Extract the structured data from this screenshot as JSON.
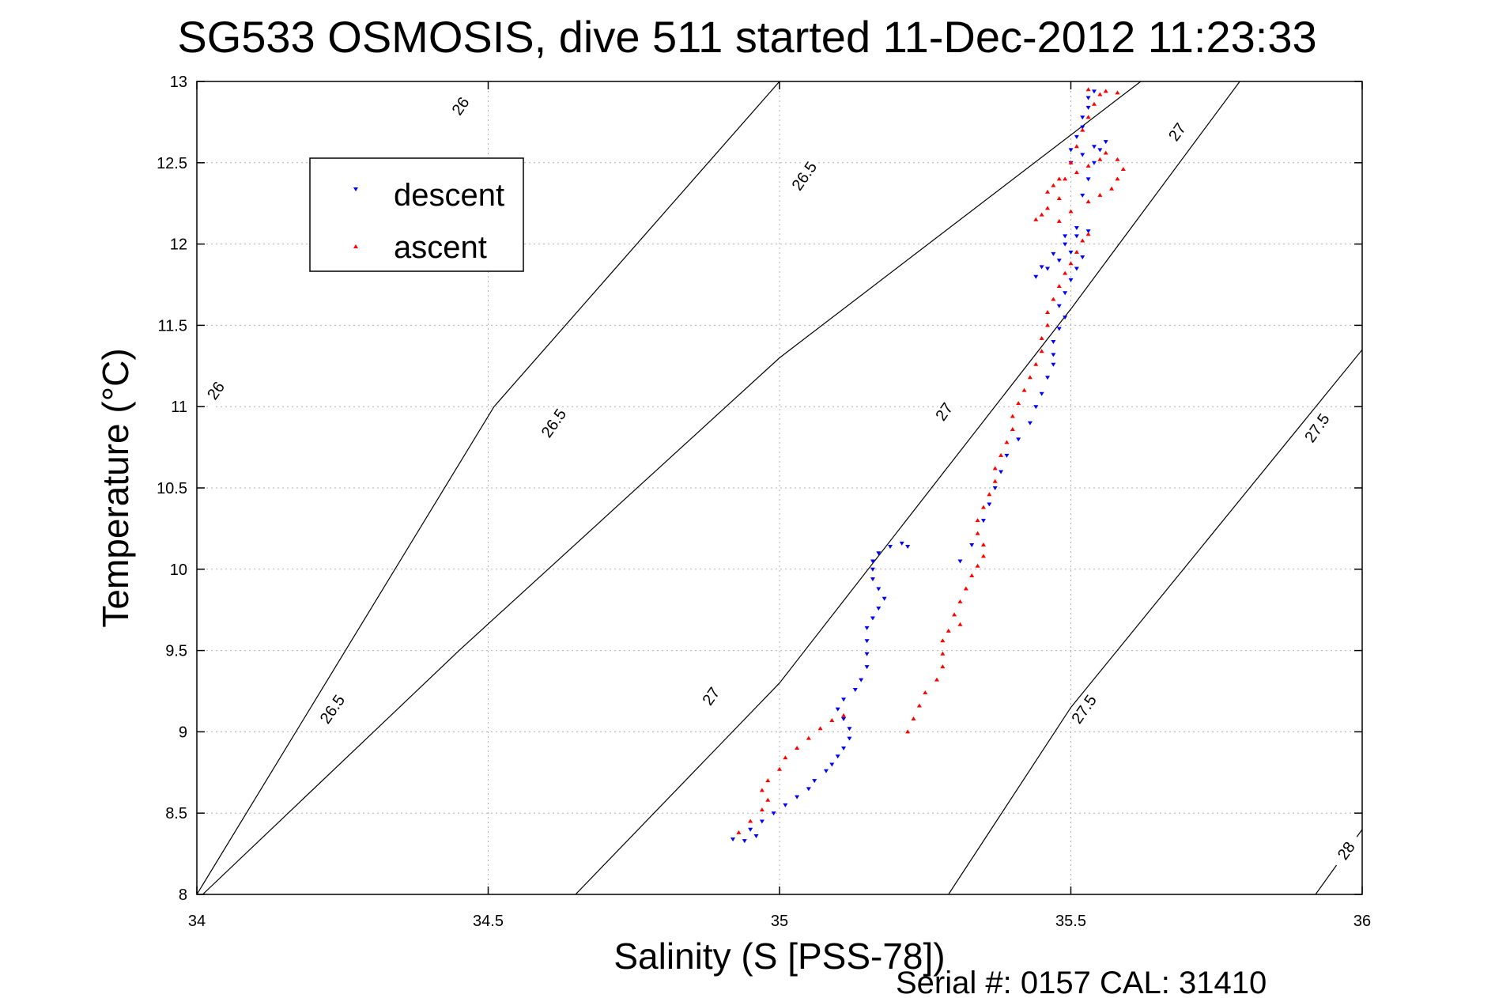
{
  "chart_data": {
    "type": "scatter",
    "title": "SG533 OSMOSIS, dive 511 started 11-Dec-2012 11:23:33",
    "xlabel": "Salinity (S [PSS-78])",
    "ylabel": "Temperature (°C)",
    "xlim": [
      34,
      36
    ],
    "ylim": [
      8,
      13
    ],
    "xticks": [
      34,
      34.5,
      35,
      35.5,
      36
    ],
    "xtick_labels": [
      "34",
      "34.5",
      "35",
      "35.5",
      "36"
    ],
    "yticks": [
      8,
      8.5,
      9,
      9.5,
      10,
      10.5,
      11,
      11.5,
      12,
      12.5,
      13
    ],
    "ytick_labels": [
      "8",
      "8.5",
      "9",
      "9.5",
      "10",
      "10.5",
      "11",
      "11.5",
      "12",
      "12.5",
      "13"
    ],
    "grid": true,
    "legend_position": "top-left",
    "footer": "Serial #: 0157  CAL: 31410",
    "density_contours": [
      {
        "label": "26",
        "points": [
          [
            34.0,
            8.0
          ],
          [
            34.51,
            11.0
          ],
          [
            35.0,
            13.0
          ]
        ]
      },
      {
        "label": "26.5",
        "points": [
          [
            34.01,
            8.0
          ],
          [
            34.45,
            9.5
          ],
          [
            35.0,
            11.3
          ],
          [
            35.62,
            13.0
          ]
        ]
      },
      {
        "label": "27",
        "points": [
          [
            34.65,
            8.0
          ],
          [
            35.0,
            9.3
          ],
          [
            35.5,
            11.6
          ],
          [
            35.79,
            13.0
          ]
        ]
      },
      {
        "label": "27.5",
        "points": [
          [
            35.29,
            8.0
          ],
          [
            35.5,
            9.15
          ],
          [
            36.0,
            11.35
          ]
        ]
      },
      {
        "label": "28",
        "points": [
          [
            35.92,
            8.0
          ],
          [
            36.0,
            8.4
          ]
        ]
      }
    ],
    "contour_label_positions": [
      {
        "label": "26",
        "at": [
          34.46,
          12.83
        ],
        "angle": -55
      },
      {
        "label": "26",
        "at": [
          34.04,
          11.08
        ],
        "angle": -55
      },
      {
        "label": "26.5",
        "at": [
          35.05,
          12.4
        ],
        "angle": -55
      },
      {
        "label": "26.5",
        "at": [
          34.62,
          10.88
        ],
        "angle": -55
      },
      {
        "label": "26.5",
        "at": [
          34.24,
          9.12
        ],
        "angle": -55
      },
      {
        "label": "27",
        "at": [
          35.69,
          12.67
        ],
        "angle": -55
      },
      {
        "label": "27",
        "at": [
          35.29,
          10.95
        ],
        "angle": -55
      },
      {
        "label": "27",
        "at": [
          34.89,
          9.2
        ],
        "angle": -55
      },
      {
        "label": "27.5",
        "at": [
          35.93,
          10.85
        ],
        "angle": -55
      },
      {
        "label": "27.5",
        "at": [
          35.53,
          9.12
        ],
        "angle": -55
      },
      {
        "label": "28",
        "at": [
          35.98,
          8.25
        ],
        "angle": -55
      }
    ],
    "series": [
      {
        "name": "descent",
        "color": "#0000ff",
        "marker": "triangle-down",
        "points": [
          [
            34.92,
            8.34
          ],
          [
            34.94,
            8.33
          ],
          [
            34.96,
            8.36
          ],
          [
            34.95,
            8.4
          ],
          [
            34.97,
            8.45
          ],
          [
            34.99,
            8.5
          ],
          [
            35.01,
            8.55
          ],
          [
            35.03,
            8.6
          ],
          [
            35.05,
            8.65
          ],
          [
            35.06,
            8.7
          ],
          [
            35.08,
            8.76
          ],
          [
            35.09,
            8.8
          ],
          [
            35.1,
            8.85
          ],
          [
            35.11,
            8.9
          ],
          [
            35.12,
            8.96
          ],
          [
            35.12,
            9.02
          ],
          [
            35.11,
            9.08
          ],
          [
            35.1,
            9.14
          ],
          [
            35.11,
            9.2
          ],
          [
            35.13,
            9.26
          ],
          [
            35.14,
            9.32
          ],
          [
            35.15,
            9.4
          ],
          [
            35.15,
            9.48
          ],
          [
            35.15,
            9.56
          ],
          [
            35.15,
            9.64
          ],
          [
            35.16,
            9.7
          ],
          [
            35.17,
            9.76
          ],
          [
            35.18,
            9.82
          ],
          [
            35.17,
            9.88
          ],
          [
            35.16,
            9.94
          ],
          [
            35.16,
            10.0
          ],
          [
            35.16,
            10.05
          ],
          [
            35.17,
            10.1
          ],
          [
            35.19,
            10.14
          ],
          [
            35.21,
            10.16
          ],
          [
            35.22,
            10.14
          ],
          [
            35.31,
            10.05
          ],
          [
            35.33,
            10.15
          ],
          [
            35.35,
            10.3
          ],
          [
            35.36,
            10.4
          ],
          [
            35.37,
            10.5
          ],
          [
            35.38,
            10.6
          ],
          [
            35.39,
            10.7
          ],
          [
            35.41,
            10.8
          ],
          [
            35.43,
            10.9
          ],
          [
            35.44,
            11.0
          ],
          [
            35.45,
            11.08
          ],
          [
            35.46,
            11.18
          ],
          [
            35.47,
            11.26
          ],
          [
            35.47,
            11.32
          ],
          [
            35.47,
            11.4
          ],
          [
            35.48,
            11.48
          ],
          [
            35.49,
            11.55
          ],
          [
            35.48,
            11.62
          ],
          [
            35.49,
            11.7
          ],
          [
            35.5,
            11.78
          ],
          [
            35.51,
            11.85
          ],
          [
            35.52,
            11.92
          ],
          [
            35.5,
            11.95
          ],
          [
            35.48,
            11.9
          ],
          [
            35.46,
            11.85
          ],
          [
            35.44,
            11.8
          ],
          [
            35.45,
            11.86
          ],
          [
            35.47,
            11.94
          ],
          [
            35.49,
            12.0
          ],
          [
            35.51,
            12.05
          ],
          [
            35.53,
            12.08
          ],
          [
            35.51,
            12.1
          ],
          [
            35.49,
            12.05
          ],
          [
            35.52,
            12.3
          ],
          [
            35.53,
            12.4
          ],
          [
            35.54,
            12.5
          ],
          [
            35.55,
            12.58
          ],
          [
            35.56,
            12.63
          ],
          [
            35.54,
            12.6
          ],
          [
            35.52,
            12.55
          ],
          [
            35.5,
            12.5
          ],
          [
            35.5,
            12.58
          ],
          [
            35.51,
            12.66
          ],
          [
            35.52,
            12.72
          ],
          [
            35.52,
            12.78
          ],
          [
            35.53,
            12.84
          ],
          [
            35.53,
            12.9
          ],
          [
            35.54,
            12.94
          ]
        ]
      },
      {
        "name": "ascent",
        "color": "#ff0000",
        "marker": "triangle-up",
        "points": [
          [
            34.93,
            8.38
          ],
          [
            34.95,
            8.45
          ],
          [
            34.97,
            8.52
          ],
          [
            34.98,
            8.58
          ],
          [
            34.97,
            8.64
          ],
          [
            34.98,
            8.7
          ],
          [
            35.0,
            8.77
          ],
          [
            35.01,
            8.84
          ],
          [
            35.03,
            8.9
          ],
          [
            35.05,
            8.96
          ],
          [
            35.07,
            9.02
          ],
          [
            35.09,
            9.07
          ],
          [
            35.11,
            9.1
          ],
          [
            35.22,
            9.0
          ],
          [
            35.23,
            9.08
          ],
          [
            35.24,
            9.16
          ],
          [
            35.25,
            9.24
          ],
          [
            35.27,
            9.32
          ],
          [
            35.28,
            9.4
          ],
          [
            35.28,
            9.48
          ],
          [
            35.28,
            9.56
          ],
          [
            35.29,
            9.62
          ],
          [
            35.31,
            9.66
          ],
          [
            35.3,
            9.72
          ],
          [
            35.31,
            9.8
          ],
          [
            35.32,
            9.88
          ],
          [
            35.33,
            9.96
          ],
          [
            35.34,
            10.02
          ],
          [
            35.35,
            10.08
          ],
          [
            35.35,
            10.15
          ],
          [
            35.34,
            10.22
          ],
          [
            35.34,
            10.3
          ],
          [
            35.35,
            10.38
          ],
          [
            35.36,
            10.46
          ],
          [
            35.37,
            10.54
          ],
          [
            35.37,
            10.62
          ],
          [
            35.38,
            10.7
          ],
          [
            35.39,
            10.78
          ],
          [
            35.4,
            10.86
          ],
          [
            35.4,
            10.94
          ],
          [
            35.41,
            11.02
          ],
          [
            35.42,
            11.1
          ],
          [
            35.43,
            11.18
          ],
          [
            35.44,
            11.26
          ],
          [
            35.45,
            11.34
          ],
          [
            35.45,
            11.42
          ],
          [
            35.46,
            11.5
          ],
          [
            35.46,
            11.58
          ],
          [
            35.47,
            11.66
          ],
          [
            35.48,
            11.74
          ],
          [
            35.49,
            11.82
          ],
          [
            35.5,
            11.88
          ],
          [
            35.51,
            11.95
          ],
          [
            35.52,
            12.02
          ],
          [
            35.53,
            12.06
          ],
          [
            35.48,
            12.14
          ],
          [
            35.45,
            12.18
          ],
          [
            35.44,
            12.15
          ],
          [
            35.46,
            12.22
          ],
          [
            35.48,
            12.28
          ],
          [
            35.5,
            12.2
          ],
          [
            35.53,
            12.26
          ],
          [
            35.55,
            12.3
          ],
          [
            35.57,
            12.34
          ],
          [
            35.58,
            12.4
          ],
          [
            35.59,
            12.46
          ],
          [
            35.58,
            12.52
          ],
          [
            35.56,
            12.56
          ],
          [
            35.55,
            12.52
          ],
          [
            35.53,
            12.48
          ],
          [
            35.51,
            12.44
          ],
          [
            35.49,
            12.4
          ],
          [
            35.47,
            12.36
          ],
          [
            35.46,
            12.32
          ],
          [
            35.48,
            12.4
          ],
          [
            35.5,
            12.5
          ],
          [
            35.51,
            12.6
          ],
          [
            35.52,
            12.7
          ],
          [
            35.53,
            12.78
          ],
          [
            35.54,
            12.86
          ],
          [
            35.55,
            12.92
          ],
          [
            35.53,
            12.95
          ],
          [
            35.56,
            12.94
          ],
          [
            35.58,
            12.93
          ]
        ]
      }
    ]
  }
}
